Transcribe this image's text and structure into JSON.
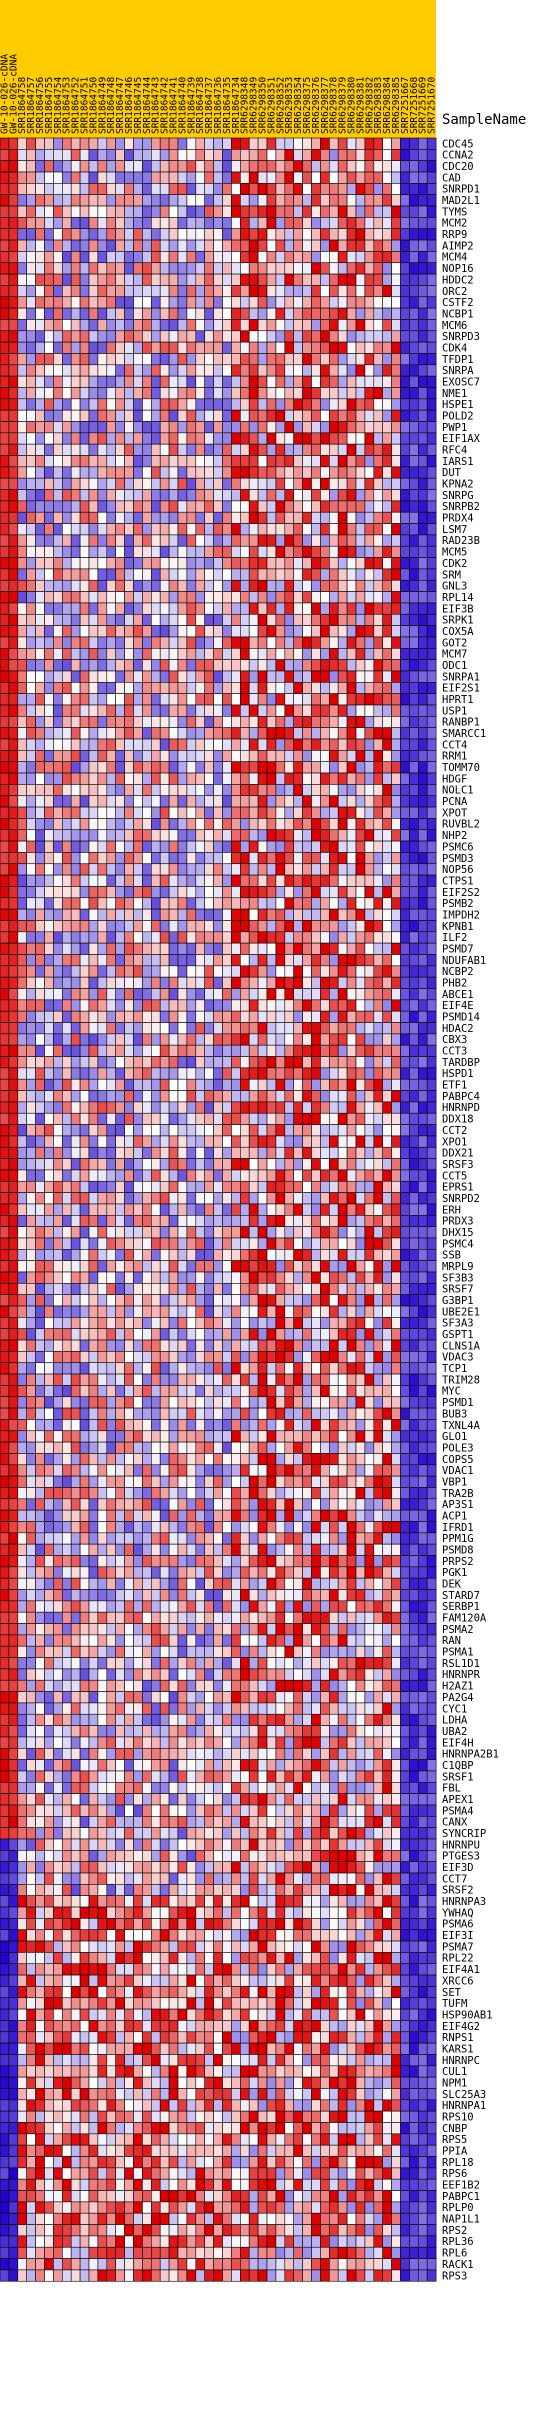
{
  "chart_data": {
    "type": "heatmap",
    "header_label": "SampleName",
    "columns": [
      "GW-10-026-cDNA",
      "GW-10-026-cDNA",
      "SRR1864758",
      "SRR1864757",
      "SRR1864756",
      "SRR1864755",
      "SRR1864754",
      "SRR1864753",
      "SRR1864752",
      "SRR1864751",
      "SRR1864750",
      "SRR1864749",
      "SRR1864748",
      "SRR1864747",
      "SRR1864746",
      "SRR1864745",
      "SRR1864744",
      "SRR1864743",
      "SRR1864742",
      "SRR1864741",
      "SRR1864740",
      "SRR1864739",
      "SRR1864738",
      "SRR1864737",
      "SRR1864736",
      "SRR1864735",
      "SRR1864734",
      "SRR6298348",
      "SRR6298349",
      "SRR6298350",
      "SRR6298351",
      "SRR6298352",
      "SRR6298353",
      "SRR6298354",
      "SRR6298375",
      "SRR6298376",
      "SRR6298377",
      "SRR6298378",
      "SRR6298379",
      "SRR6298380",
      "SRR6298381",
      "SRR6298382",
      "SRR6298383",
      "SRR6298384",
      "SRR6298385",
      "SRR7251667",
      "SRR7251668",
      "SRR7251669",
      "SRR7251670"
    ],
    "rows": [
      "CDC45",
      "CCNA2",
      "CDC20",
      "CAD",
      "SNRPD1",
      "MAD2L1",
      "TYMS",
      "MCM2",
      "RRP9",
      "AIMP2",
      "MCM4",
      "NOP16",
      "HDDC2",
      "ORC2",
      "CSTF2",
      "NCBP1",
      "MCM6",
      "SNRPD3",
      "CDK4",
      "TFDP1",
      "SNRPA",
      "EXOSC7",
      "NME1",
      "HSPE1",
      "POLD2",
      "PWP1",
      "EIF1AX",
      "RFC4",
      "IARS1",
      "DUT",
      "KPNA2",
      "SNRPG",
      "SNRPB2",
      "PRDX4",
      "LSM7",
      "RAD23B",
      "MCM5",
      "CDK2",
      "SRM",
      "GNL3",
      "RPL14",
      "EIF3B",
      "SRPK1",
      "COX5A",
      "GOT2",
      "MCM7",
      "ODC1",
      "SNRPA1",
      "EIF2S1",
      "HPRT1",
      "USP1",
      "RANBP1",
      "SMARCC1",
      "CCT4",
      "RRM1",
      "TOMM70",
      "HDGF",
      "NOLC1",
      "PCNA",
      "XPOT",
      "RUVBL2",
      "NHP2",
      "PSMC6",
      "PSMD3",
      "NOP56",
      "CTPS1",
      "EIF2S2",
      "PSMB2",
      "IMPDH2",
      "KPNB1",
      "ILF2",
      "PSMD7",
      "NDUFAB1",
      "NCBP2",
      "PHB2",
      "ABCE1",
      "EIF4E",
      "PSMD14",
      "HDAC2",
      "CBX3",
      "CCT3",
      "TARDBP",
      "HSPD1",
      "ETF1",
      "PABPC4",
      "HNRNPD",
      "DDX18",
      "CCT2",
      "XPO1",
      "DDX21",
      "SRSF3",
      "CCT5",
      "EPRS1",
      "SNRPD2",
      "ERH",
      "PRDX3",
      "DHX15",
      "PSMC4",
      "SSB",
      "MRPL9",
      "SF3B3",
      "SRSF7",
      "G3BP1",
      "UBE2E1",
      "SF3A3",
      "GSPT1",
      "CLNS1A",
      "VDAC3",
      "TCP1",
      "TRIM28",
      "MYC",
      "PSMD1",
      "BUB3",
      "TXNL4A",
      "GLO1",
      "POLE3",
      "COPS5",
      "VDAC1",
      "VBP1",
      "TRA2B",
      "AP3S1",
      "ACP1",
      "IFRD1",
      "PPM1G",
      "PSMD8",
      "PRPS2",
      "PGK1",
      "DEK",
      "STARD7",
      "SERBP1",
      "FAM120A",
      "PSMA2",
      "RAN",
      "PSMA1",
      "RSL1D1",
      "HNRNPR",
      "H2AZ1",
      "PA2G4",
      "CYC1",
      "LDHA",
      "UBA2",
      "EIF4H",
      "HNRNPA2B1",
      "C1QBP",
      "SRSF1",
      "FBL",
      "APEX1",
      "PSMA4",
      "CANX",
      "SYNCRIP",
      "HNRNPU",
      "PTGES3",
      "EIF3D",
      "CCT7",
      "SRSF2",
      "HNRNPA3",
      "YWHAQ",
      "PSMA6",
      "EIF3I",
      "PSMA7",
      "RPL22",
      "EIF4A1",
      "XRCC6",
      "SET",
      "TUFM",
      "HSP90AB1",
      "EIF4G2",
      "RNPS1",
      "KARS1",
      "HNRNPC",
      "CUL1",
      "NPM1",
      "SLC25A3",
      "HNRNPA1",
      "RPS10",
      "CNBP",
      "RPS5",
      "PPIA",
      "RPL18",
      "RPS6",
      "EEF1B2",
      "PABPC1",
      "RPLP0",
      "NAP1L1",
      "RPS2",
      "RPL36",
      "RPL6",
      "RACK1",
      "RPS3"
    ],
    "color_scale": {
      "low": "#2200cc",
      "mid": "#ffffff",
      "high": "#dd0000"
    },
    "cell_border": "#000000",
    "header_band_color": "#ffcc00"
  }
}
